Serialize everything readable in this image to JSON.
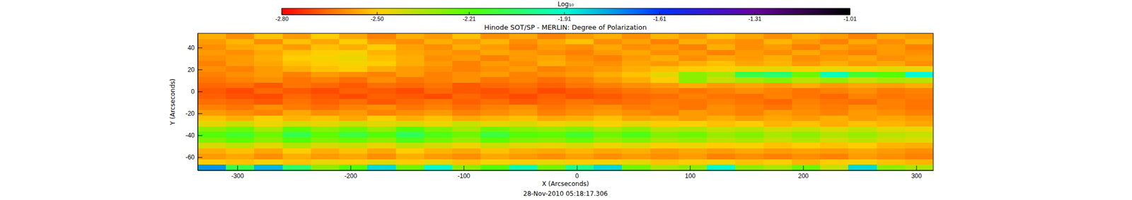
{
  "chart_data": {
    "type": "heatmap",
    "title": "Hinode SOT/SP - MERLIN: Degree of Polarization",
    "x_label": "X (Arcseconds)",
    "y_label": "Y (Arcseconds)",
    "annotation": "28-Nov-2010 05:18:17.306",
    "xlim": [
      -335,
      315
    ],
    "ylim": [
      -72,
      53
    ],
    "xticks": [
      -300,
      -200,
      -100,
      0,
      100,
      200,
      300
    ],
    "yticks": [
      -60,
      -40,
      -20,
      0,
      20,
      40
    ],
    "x": [
      -322.5,
      -297.5,
      -272.5,
      -247.5,
      -222.5,
      -197.5,
      -172.5,
      -147.5,
      -122.5,
      -97.5,
      -72.5,
      -47.5,
      -22.5,
      2.5,
      27.5,
      52.5,
      77.5,
      102.5,
      127.5,
      152.5,
      177.5,
      202.5,
      227.5,
      252.5,
      277.5,
      302.5
    ],
    "y": [
      50.5,
      45.5,
      40.5,
      35.5,
      30.5,
      25.5,
      20.5,
      15.5,
      10.5,
      5.5,
      0.5,
      -4.5,
      -9.5,
      -14.5,
      -19.5,
      -24.5,
      -29.5,
      -34.5,
      -39.5,
      -44.5,
      -49.5,
      -54.5,
      -59.5,
      -64.5,
      -69.5
    ],
    "z": [
      [
        -2.55,
        -2.6,
        -2.52,
        -2.58,
        -2.5,
        -2.56,
        -2.62,
        -2.55,
        -2.58,
        -2.52,
        -2.6,
        -2.56,
        -2.62,
        -2.58,
        -2.55,
        -2.6,
        -2.54,
        -2.58,
        -2.52,
        -2.56,
        -2.6,
        -2.55,
        -2.58,
        -2.62,
        -2.56,
        -2.58
      ],
      [
        -2.58,
        -2.54,
        -2.6,
        -2.52,
        -2.56,
        -2.5,
        -2.58,
        -2.6,
        -2.55,
        -2.58,
        -2.54,
        -2.6,
        -2.56,
        -2.52,
        -2.6,
        -2.57,
        -2.62,
        -2.55,
        -2.58,
        -2.6,
        -2.54,
        -2.58,
        -2.62,
        -2.56,
        -2.6,
        -2.55
      ],
      [
        -2.6,
        -2.56,
        -2.54,
        -2.58,
        -2.52,
        -2.55,
        -2.5,
        -2.57,
        -2.6,
        -2.55,
        -2.58,
        -2.62,
        -2.58,
        -2.6,
        -2.56,
        -2.6,
        -2.58,
        -2.62,
        -2.55,
        -2.6,
        -2.58,
        -2.62,
        -2.57,
        -2.6,
        -2.58,
        -2.62
      ],
      [
        -2.58,
        -2.6,
        -2.56,
        -2.52,
        -2.5,
        -2.48,
        -2.54,
        -2.56,
        -2.58,
        -2.6,
        -2.56,
        -2.58,
        -2.6,
        -2.62,
        -2.58,
        -2.56,
        -2.6,
        -2.58,
        -2.62,
        -2.58,
        -2.6,
        -2.56,
        -2.6,
        -2.62,
        -2.58,
        -2.6
      ],
      [
        -2.6,
        -2.58,
        -2.55,
        -2.5,
        -2.48,
        -2.46,
        -2.52,
        -2.55,
        -2.6,
        -2.58,
        -2.62,
        -2.58,
        -2.56,
        -2.6,
        -2.62,
        -2.58,
        -2.55,
        -2.6,
        -2.56,
        -2.58,
        -2.55,
        -2.6,
        -2.58,
        -2.56,
        -2.6,
        -2.58
      ],
      [
        -2.62,
        -2.58,
        -2.56,
        -2.52,
        -2.5,
        -2.48,
        -2.5,
        -2.55,
        -2.58,
        -2.62,
        -2.58,
        -2.6,
        -2.55,
        -2.58,
        -2.6,
        -2.56,
        -2.58,
        -2.55,
        -2.52,
        -2.56,
        -2.54,
        -2.58,
        -2.55,
        -2.58,
        -2.56,
        -2.6
      ],
      [
        -2.6,
        -2.62,
        -2.58,
        -2.55,
        -2.52,
        -2.5,
        -2.55,
        -2.58,
        -2.6,
        -2.62,
        -2.6,
        -2.58,
        -2.62,
        -2.6,
        -2.58,
        -2.55,
        -2.52,
        -2.5,
        -2.48,
        -2.46,
        -2.45,
        -2.48,
        -2.46,
        -2.48,
        -2.45,
        -2.46
      ],
      [
        -2.62,
        -2.6,
        -2.58,
        -2.62,
        -2.58,
        -2.6,
        -2.62,
        -2.58,
        -2.62,
        -2.6,
        -2.58,
        -2.62,
        -2.6,
        -2.58,
        -2.55,
        -2.52,
        -2.45,
        -2.3,
        -2.35,
        -2.1,
        -2.05,
        -2.25,
        -1.95,
        -2.15,
        -2.2,
        -1.9
      ],
      [
        -2.64,
        -2.62,
        -2.6,
        -2.64,
        -2.62,
        -2.65,
        -2.6,
        -2.64,
        -2.62,
        -2.6,
        -2.64,
        -2.62,
        -2.65,
        -2.62,
        -2.58,
        -2.55,
        -2.5,
        -2.3,
        -2.4,
        -2.35,
        -2.3,
        -2.38,
        -2.32,
        -2.4,
        -2.35,
        -2.38
      ],
      [
        -2.66,
        -2.65,
        -2.68,
        -2.64,
        -2.66,
        -2.68,
        -2.65,
        -2.66,
        -2.64,
        -2.68,
        -2.66,
        -2.65,
        -2.67,
        -2.64,
        -2.62,
        -2.6,
        -2.58,
        -2.55,
        -2.58,
        -2.56,
        -2.58,
        -2.55,
        -2.58,
        -2.56,
        -2.57,
        -2.55
      ],
      [
        -2.68,
        -2.7,
        -2.66,
        -2.68,
        -2.7,
        -2.67,
        -2.68,
        -2.7,
        -2.66,
        -2.68,
        -2.69,
        -2.67,
        -2.7,
        -2.68,
        -2.66,
        -2.64,
        -2.62,
        -2.64,
        -2.62,
        -2.6,
        -2.62,
        -2.64,
        -2.62,
        -2.6,
        -2.63,
        -2.62
      ],
      [
        -2.67,
        -2.69,
        -2.7,
        -2.66,
        -2.68,
        -2.7,
        -2.67,
        -2.68,
        -2.7,
        -2.66,
        -2.68,
        -2.7,
        -2.67,
        -2.69,
        -2.68,
        -2.66,
        -2.65,
        -2.62,
        -2.64,
        -2.65,
        -2.62,
        -2.64,
        -2.66,
        -2.62,
        -2.64,
        -2.63
      ],
      [
        -2.65,
        -2.66,
        -2.68,
        -2.64,
        -2.67,
        -2.65,
        -2.68,
        -2.66,
        -2.64,
        -2.67,
        -2.65,
        -2.68,
        -2.66,
        -2.64,
        -2.66,
        -2.65,
        -2.63,
        -2.64,
        -2.62,
        -2.64,
        -2.66,
        -2.62,
        -2.64,
        -2.65,
        -2.62,
        -2.64
      ],
      [
        -2.62,
        -2.64,
        -2.6,
        -2.63,
        -2.65,
        -2.62,
        -2.6,
        -2.64,
        -2.62,
        -2.65,
        -2.62,
        -2.6,
        -2.64,
        -2.62,
        -2.6,
        -2.63,
        -2.62,
        -2.64,
        -2.6,
        -2.62,
        -2.64,
        -2.61,
        -2.63,
        -2.6,
        -2.62,
        -2.64
      ],
      [
        -2.58,
        -2.6,
        -2.62,
        -2.56,
        -2.6,
        -2.58,
        -2.62,
        -2.6,
        -2.58,
        -2.62,
        -2.6,
        -2.58,
        -2.62,
        -2.6,
        -2.58,
        -2.6,
        -2.62,
        -2.58,
        -2.6,
        -2.62,
        -2.58,
        -2.6,
        -2.62,
        -2.58,
        -2.6,
        -2.62
      ],
      [
        -2.52,
        -2.55,
        -2.5,
        -2.54,
        -2.52,
        -2.56,
        -2.5,
        -2.55,
        -2.52,
        -2.56,
        -2.54,
        -2.52,
        -2.56,
        -2.55,
        -2.52,
        -2.56,
        -2.55,
        -2.58,
        -2.55,
        -2.58,
        -2.56,
        -2.58,
        -2.55,
        -2.58,
        -2.56,
        -2.58
      ],
      [
        -2.45,
        -2.4,
        -2.46,
        -2.42,
        -2.45,
        -2.4,
        -2.44,
        -2.42,
        -2.46,
        -2.4,
        -2.45,
        -2.42,
        -2.46,
        -2.44,
        -2.48,
        -2.45,
        -2.5,
        -2.48,
        -2.52,
        -2.5,
        -2.54,
        -2.52,
        -2.55,
        -2.52,
        -2.54,
        -2.56
      ],
      [
        -2.3,
        -2.25,
        -2.35,
        -2.22,
        -2.3,
        -2.25,
        -2.32,
        -2.2,
        -2.28,
        -2.35,
        -2.25,
        -2.3,
        -2.32,
        -2.28,
        -2.35,
        -2.3,
        -2.38,
        -2.36,
        -2.4,
        -2.38,
        -2.42,
        -2.4,
        -2.44,
        -2.4,
        -2.45,
        -2.46
      ],
      [
        -2.2,
        -2.15,
        -2.25,
        -2.1,
        -2.22,
        -2.12,
        -2.2,
        -2.08,
        -2.18,
        -2.25,
        -2.12,
        -2.2,
        -2.22,
        -2.15,
        -2.25,
        -2.18,
        -2.28,
        -2.25,
        -2.32,
        -2.28,
        -2.35,
        -2.3,
        -2.36,
        -2.32,
        -2.38,
        -2.4
      ],
      [
        -2.28,
        -2.22,
        -2.3,
        -2.2,
        -2.28,
        -2.24,
        -2.3,
        -2.18,
        -2.26,
        -2.32,
        -2.22,
        -2.28,
        -2.3,
        -2.24,
        -2.32,
        -2.28,
        -2.35,
        -2.32,
        -2.38,
        -2.35,
        -2.4,
        -2.36,
        -2.42,
        -2.38,
        -2.42,
        -2.44
      ],
      [
        -2.42,
        -2.38,
        -2.44,
        -2.36,
        -2.42,
        -2.4,
        -2.45,
        -2.38,
        -2.42,
        -2.46,
        -2.4,
        -2.44,
        -2.45,
        -2.42,
        -2.46,
        -2.44,
        -2.48,
        -2.46,
        -2.5,
        -2.48,
        -2.52,
        -2.5,
        -2.52,
        -2.5,
        -2.54,
        -2.55
      ],
      [
        -2.55,
        -2.52,
        -2.56,
        -2.5,
        -2.55,
        -2.52,
        -2.56,
        -2.5,
        -2.54,
        -2.56,
        -2.52,
        -2.55,
        -2.56,
        -2.54,
        -2.56,
        -2.55,
        -2.58,
        -2.56,
        -2.58,
        -2.56,
        -2.58,
        -2.57,
        -2.58,
        -2.56,
        -2.58,
        -2.6
      ],
      [
        -2.58,
        -2.56,
        -2.6,
        -2.55,
        -2.58,
        -2.56,
        -2.6,
        -2.55,
        -2.58,
        -2.6,
        -2.56,
        -2.58,
        -2.6,
        -2.57,
        -2.6,
        -2.58,
        -2.6,
        -2.58,
        -2.62,
        -2.6,
        -2.62,
        -2.6,
        -2.62,
        -2.58,
        -2.6,
        -2.62
      ],
      [
        -2.5,
        -2.52,
        -2.48,
        -2.52,
        -2.46,
        -2.5,
        -2.45,
        -2.5,
        -2.46,
        -2.52,
        -2.48,
        -2.5,
        -2.46,
        -2.5,
        -2.48,
        -2.45,
        -2.52,
        -2.5,
        -2.48,
        -2.52,
        -2.5,
        -2.54,
        -2.5,
        -2.48,
        -2.52,
        -2.54
      ],
      [
        -1.75,
        -2.1,
        -1.8,
        -2.05,
        -2.3,
        -2.2,
        -1.85,
        -2.25,
        -1.9,
        -2.3,
        -2.2,
        -1.95,
        -2.25,
        -2.0,
        -1.85,
        -2.25,
        -2.35,
        -2.3,
        -1.9,
        -2.3,
        -2.35,
        -2.25,
        -2.4,
        -1.85,
        -2.3,
        -2.35
      ]
    ],
    "colorbar": {
      "title": "Log₁₀",
      "range": [
        -2.8,
        -1.01
      ],
      "ticks": [
        {
          "value": -2.8,
          "label": "-2.80"
        },
        {
          "value": -2.5,
          "label": "-2.50"
        },
        -2.21,
        -1.91,
        -1.61,
        -1.31,
        -1.01
      ]
    }
  }
}
